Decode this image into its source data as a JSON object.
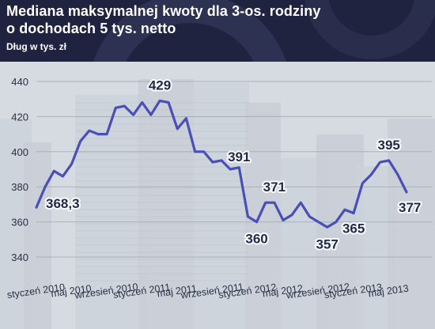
{
  "header": {
    "title_line1": "Mediana maksymalnej kwoty dla 3-os. rodziny",
    "title_line2": "o dochodach 5 tys. netto",
    "subtitle": "Dług w tys. zł"
  },
  "colors": {
    "header_bg": "#20233f",
    "line": "#4a4fb8",
    "label_text": "#1f2a4a"
  },
  "chart_data": {
    "type": "line",
    "title": "Mediana maksymalnej kwoty dla 3-os. rodziny o dochodach 5 tys. netto",
    "ylabel": "Dług w tys. zł",
    "ylim": [
      340,
      440
    ],
    "yticks": [
      340,
      360,
      380,
      400,
      420,
      440
    ],
    "grid": true,
    "x_tick_labels": [
      "styczeń 2010",
      "maj 2010",
      "wrzesień 2010",
      "styczeń 2011",
      "maj 2011",
      "wrzesień 2011",
      "styczeń 2012",
      "maj 2012",
      "wrzesień 2012",
      "styczeń 2013",
      "maj 2013"
    ],
    "series": [
      {
        "values": [
          368.3,
          380,
          389,
          386,
          393,
          406,
          412,
          410,
          410,
          425,
          426,
          421,
          428,
          421,
          429,
          428,
          413,
          419,
          400,
          400,
          394,
          395,
          390,
          391,
          363,
          360,
          371,
          371,
          361,
          364,
          371,
          363,
          360,
          357,
          360,
          367,
          365,
          382,
          387,
          394,
          395,
          387,
          377
        ]
      }
    ],
    "annotations": [
      {
        "text": "368,3",
        "index": 0,
        "value": 368.3
      },
      {
        "text": "429",
        "index": 14,
        "value": 429
      },
      {
        "text": "391",
        "index": 23,
        "value": 391
      },
      {
        "text": "360",
        "index": 25,
        "value": 360
      },
      {
        "text": "371",
        "index": 27,
        "value": 371
      },
      {
        "text": "357",
        "index": 33,
        "value": 357
      },
      {
        "text": "365",
        "index": 36,
        "value": 365
      },
      {
        "text": "395",
        "index": 40,
        "value": 395
      },
      {
        "text": "377",
        "index": 42,
        "value": 377
      }
    ]
  }
}
